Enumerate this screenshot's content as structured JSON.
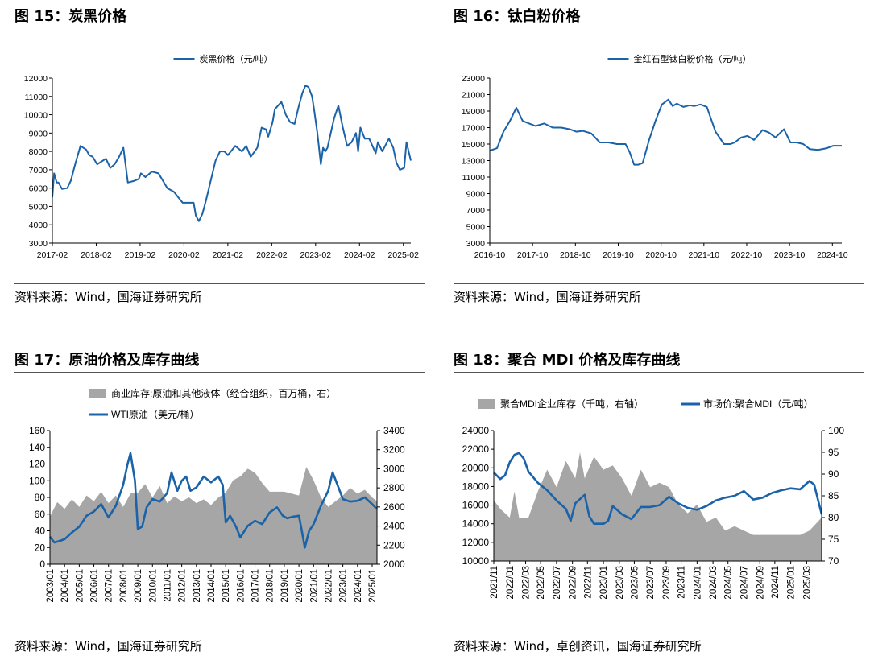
{
  "figures": {
    "fig15": {
      "title": "图 15：炭黑价格",
      "source": "资料来源：Wind，国海证券研究所"
    },
    "fig16": {
      "title": "图 16：钛白粉价格",
      "source": "资料来源：Wind，国海证券研究所"
    },
    "fig17": {
      "title": "图 17：原油价格及库存曲线",
      "source": "资料来源：Wind，国海证券研究所"
    },
    "fig18": {
      "title": "图 18：聚合 MDI 价格及库存曲线",
      "source": "资料来源：Wind，卓创资讯，国海证券研究所"
    }
  },
  "colors": {
    "line": "#1B63A8",
    "area": "#A6A6A6",
    "rule": "#555555"
  },
  "chart_data": [
    {
      "id": "fig15",
      "type": "line",
      "title": "",
      "xlabel": "",
      "ylabel": "",
      "legend_position": "top-center",
      "grid": false,
      "xlim": [
        2017.08,
        2025.25
      ],
      "ylim": [
        3000,
        12000
      ],
      "y_ticks": [
        3000,
        4000,
        5000,
        6000,
        7000,
        8000,
        9000,
        10000,
        11000,
        12000
      ],
      "x_ticks": [
        2017.08,
        2018.08,
        2019.08,
        2020.08,
        2021.08,
        2022.08,
        2023.08,
        2024.08,
        2025.08
      ],
      "x_tick_labels": [
        "2017-02",
        "2018-02",
        "2019-02",
        "2020-02",
        "2021-02",
        "2022-02",
        "2023-02",
        "2024-02",
        "2025-02"
      ],
      "series": [
        {
          "name": "炭黑价格（元/吨）",
          "x": [
            2017.08,
            2017.12,
            2017.18,
            2017.22,
            2017.3,
            2017.42,
            2017.5,
            2017.6,
            2017.72,
            2017.85,
            2017.92,
            2018.0,
            2018.1,
            2018.3,
            2018.4,
            2018.5,
            2018.6,
            2018.7,
            2018.8,
            2018.95,
            2019.05,
            2019.1,
            2019.2,
            2019.35,
            2019.5,
            2019.6,
            2019.7,
            2019.85,
            2019.95,
            2020.05,
            2020.2,
            2020.3,
            2020.35,
            2020.42,
            2020.5,
            2020.58,
            2020.65,
            2020.8,
            2020.9,
            2021.0,
            2021.08,
            2021.25,
            2021.4,
            2021.5,
            2021.6,
            2021.75,
            2021.85,
            2021.95,
            2022.0,
            2022.1,
            2022.15,
            2022.3,
            2022.4,
            2022.5,
            2022.6,
            2022.7,
            2022.78,
            2022.85,
            2022.92,
            2023.0,
            2023.05,
            2023.12,
            2023.2,
            2023.25,
            2023.3,
            2023.35,
            2023.5,
            2023.6,
            2023.7,
            2023.8,
            2023.9,
            2024.0,
            2024.05,
            2024.1,
            2024.2,
            2024.3,
            2024.45,
            2024.5,
            2024.6,
            2024.75,
            2024.85,
            2024.92,
            2025.0,
            2025.1,
            2025.15,
            2025.25
          ],
          "y": [
            5500,
            6800,
            6300,
            6300,
            5950,
            6000,
            6400,
            7300,
            8300,
            8100,
            7800,
            7700,
            7300,
            7600,
            7100,
            7300,
            7700,
            8200,
            6300,
            6400,
            6500,
            6800,
            6600,
            6900,
            6800,
            6400,
            6000,
            5800,
            5500,
            5200,
            5200,
            5200,
            4500,
            4200,
            4600,
            5300,
            6000,
            7500,
            8000,
            8000,
            7800,
            8300,
            8000,
            8300,
            7700,
            8200,
            9300,
            9200,
            8800,
            9600,
            10300,
            10700,
            10000,
            9600,
            9500,
            10500,
            11200,
            11600,
            11500,
            11000,
            10200,
            9000,
            7300,
            8200,
            8000,
            8200,
            9800,
            10500,
            9300,
            8300,
            8500,
            9000,
            8000,
            9300,
            8700,
            8700,
            7900,
            8500,
            8000,
            8700,
            8200,
            7400,
            7000,
            7100,
            8500,
            7500
          ]
        }
      ]
    },
    {
      "id": "fig16",
      "type": "line",
      "title": "",
      "xlabel": "",
      "ylabel": "",
      "legend_position": "top-center",
      "grid": false,
      "xlim": [
        2016.83,
        2025.05
      ],
      "ylim": [
        3000,
        23000
      ],
      "y_ticks": [
        3000,
        5000,
        7000,
        9000,
        11000,
        13000,
        15000,
        17000,
        19000,
        21000,
        23000
      ],
      "x_ticks": [
        2016.83,
        2017.83,
        2018.83,
        2019.83,
        2020.83,
        2021.83,
        2022.83,
        2023.83,
        2024.83
      ],
      "x_tick_labels": [
        "2016-10",
        "2017-10",
        "2018-10",
        "2019-10",
        "2020-10",
        "2021-10",
        "2022-10",
        "2023-10",
        "2024-10"
      ],
      "series": [
        {
          "name": "金红石型钛白粉价格（元/吨）",
          "x": [
            2016.83,
            2017.0,
            2017.15,
            2017.3,
            2017.45,
            2017.6,
            2017.75,
            2017.9,
            2018.1,
            2018.3,
            2018.5,
            2018.7,
            2018.85,
            2019.0,
            2019.2,
            2019.4,
            2019.6,
            2019.8,
            2020.0,
            2020.1,
            2020.2,
            2020.3,
            2020.4,
            2020.55,
            2020.7,
            2020.85,
            2021.0,
            2021.1,
            2021.2,
            2021.35,
            2021.5,
            2021.6,
            2021.75,
            2021.9,
            2022.1,
            2022.3,
            2022.45,
            2022.55,
            2022.7,
            2022.85,
            2023.0,
            2023.2,
            2023.35,
            2023.5,
            2023.7,
            2023.85,
            2024.0,
            2024.15,
            2024.3,
            2024.5,
            2024.7,
            2024.85,
            2025.05
          ],
          "y": [
            14200,
            14500,
            16500,
            17800,
            19400,
            17800,
            17500,
            17200,
            17500,
            17000,
            17000,
            16800,
            16500,
            16600,
            16300,
            15200,
            15200,
            15000,
            15000,
            14000,
            12500,
            12500,
            12700,
            15500,
            17800,
            19800,
            20400,
            19600,
            19900,
            19500,
            19700,
            19600,
            19800,
            19500,
            16500,
            15000,
            15000,
            15200,
            15800,
            16000,
            15500,
            16700,
            16400,
            15800,
            16800,
            15200,
            15200,
            15000,
            14400,
            14300,
            14500,
            14800,
            14800
          ]
        }
      ]
    },
    {
      "id": "fig17",
      "type": "line",
      "title": "",
      "xlabel": "",
      "ylabel": "",
      "legend_position": "top-center",
      "grid": false,
      "xlim": [
        2003.0,
        2025.33
      ],
      "ylim": [
        0,
        160
      ],
      "ylim_right": [
        2000,
        3400
      ],
      "y_ticks": [
        0,
        20,
        40,
        60,
        80,
        100,
        120,
        140,
        160
      ],
      "y_right_ticks": [
        2000,
        2200,
        2400,
        2600,
        2800,
        3000,
        3200,
        3400
      ],
      "x_ticks": [
        2003,
        2004,
        2005,
        2006,
        2007,
        2008,
        2009,
        2010,
        2011,
        2012,
        2013,
        2014,
        2015,
        2016,
        2017,
        2018,
        2019,
        2020,
        2021,
        2022,
        2023,
        2024,
        2025
      ],
      "x_tick_labels": [
        "2003/01",
        "2004/01",
        "2005/01",
        "2006/01",
        "2007/01",
        "2008/01",
        "2009/01",
        "2010/01",
        "2011/01",
        "2012/01",
        "2013/01",
        "2014/01",
        "2015/01",
        "2016/01",
        "2017/01",
        "2018/01",
        "2019/01",
        "2020/01",
        "2021/01",
        "2022/01",
        "2023/01",
        "2024/01",
        "2025/01"
      ],
      "series": [
        {
          "name": "商业库存:原油和其他液体（经合组织，百万桶，右）",
          "axis": "right",
          "type": "area",
          "x": [
            2003.0,
            2003.5,
            2004.0,
            2004.5,
            2005.0,
            2005.5,
            2006.0,
            2006.5,
            2007.0,
            2007.5,
            2008.0,
            2008.5,
            2009.0,
            2009.5,
            2010.0,
            2010.5,
            2011.0,
            2011.5,
            2012.0,
            2012.5,
            2013.0,
            2013.5,
            2014.0,
            2014.5,
            2015.0,
            2015.5,
            2016.0,
            2016.5,
            2017.0,
            2017.5,
            2018.0,
            2018.5,
            2019.0,
            2019.5,
            2020.0,
            2020.5,
            2021.0,
            2021.5,
            2022.0,
            2022.5,
            2023.0,
            2023.5,
            2024.0,
            2024.5,
            2025.0,
            2025.33
          ],
          "y": [
            2500,
            2650,
            2580,
            2680,
            2600,
            2720,
            2660,
            2760,
            2640,
            2720,
            2600,
            2740,
            2750,
            2840,
            2700,
            2820,
            2640,
            2710,
            2660,
            2700,
            2640,
            2680,
            2620,
            2700,
            2750,
            2880,
            2920,
            3000,
            2960,
            2850,
            2760,
            2760,
            2760,
            2740,
            2720,
            3020,
            2880,
            2700,
            2600,
            2660,
            2720,
            2800,
            2740,
            2780,
            2700,
            2660
          ]
        },
        {
          "name": "WTI原油（美元/桶）",
          "axis": "left",
          "type": "line",
          "x": [
            2003.0,
            2003.3,
            2003.7,
            2004.0,
            2004.5,
            2005.0,
            2005.5,
            2006.0,
            2006.5,
            2007.0,
            2007.5,
            2008.0,
            2008.3,
            2008.5,
            2008.8,
            2009.0,
            2009.3,
            2009.6,
            2010.0,
            2010.5,
            2011.0,
            2011.3,
            2011.7,
            2012.0,
            2012.3,
            2012.6,
            2013.0,
            2013.5,
            2014.0,
            2014.5,
            2014.8,
            2015.0,
            2015.3,
            2015.7,
            2016.0,
            2016.5,
            2017.0,
            2017.5,
            2018.0,
            2018.5,
            2018.9,
            2019.2,
            2019.6,
            2020.0,
            2020.2,
            2020.4,
            2020.7,
            2021.0,
            2021.5,
            2022.0,
            2022.3,
            2022.7,
            2023.0,
            2023.5,
            2024.0,
            2024.5,
            2025.0,
            2025.33
          ],
          "y": [
            33,
            26,
            28,
            30,
            38,
            45,
            58,
            63,
            72,
            56,
            70,
            95,
            120,
            133,
            100,
            42,
            45,
            68,
            78,
            75,
            85,
            110,
            88,
            100,
            105,
            88,
            92,
            105,
            98,
            105,
            95,
            50,
            58,
            45,
            32,
            46,
            52,
            48,
            62,
            68,
            58,
            55,
            57,
            58,
            40,
            20,
            40,
            48,
            70,
            88,
            110,
            92,
            78,
            75,
            76,
            80,
            72,
            66
          ]
        }
      ]
    },
    {
      "id": "fig18",
      "type": "line",
      "title": "",
      "xlabel": "",
      "ylabel": "",
      "legend_position": "top-center",
      "grid": false,
      "xlim": [
        2021.83,
        2025.33
      ],
      "ylim": [
        10000,
        24000
      ],
      "ylim_right": [
        70,
        100
      ],
      "y_ticks": [
        10000,
        12000,
        14000,
        16000,
        18000,
        20000,
        22000,
        24000
      ],
      "y_right_ticks": [
        70,
        75,
        80,
        85,
        90,
        95,
        100
      ],
      "x_ticks": [
        2021.83,
        2022.0,
        2022.17,
        2022.33,
        2022.5,
        2022.67,
        2022.83,
        2023.0,
        2023.17,
        2023.33,
        2023.5,
        2023.67,
        2023.83,
        2024.0,
        2024.17,
        2024.33,
        2024.5,
        2024.67,
        2024.83,
        2025.0,
        2025.17
      ],
      "x_tick_labels": [
        "2021/11",
        "2022/01",
        "2022/03",
        "2022/05",
        "2022/07",
        "2022/09",
        "2022/11",
        "2023/01",
        "2023/03",
        "2023/05",
        "2023/07",
        "2023/09",
        "2023/11",
        "2024/01",
        "2024/03",
        "2024/05",
        "2024/07",
        "2024/09",
        "2024/11",
        "2025/01",
        "2025/03"
      ],
      "series": [
        {
          "name": "聚合MDI企业库存（千吨，右轴）",
          "axis": "right",
          "type": "area",
          "x": [
            2021.83,
            2021.9,
            2022.0,
            2022.05,
            2022.1,
            2022.2,
            2022.3,
            2022.4,
            2022.5,
            2022.6,
            2022.7,
            2022.75,
            2022.8,
            2022.9,
            2023.0,
            2023.1,
            2023.2,
            2023.3,
            2023.4,
            2023.5,
            2023.6,
            2023.7,
            2023.8,
            2023.9,
            2024.0,
            2024.1,
            2024.2,
            2024.3,
            2024.4,
            2024.5,
            2024.6,
            2024.7,
            2024.8,
            2024.9,
            2025.0,
            2025.1,
            2025.2,
            2025.33
          ],
          "y": [
            84,
            82,
            80,
            86,
            80,
            80,
            86,
            91,
            87,
            93,
            89,
            95,
            89,
            94,
            91,
            92,
            89,
            85,
            91,
            87,
            88,
            87,
            83,
            81,
            83,
            79,
            80,
            77,
            78,
            77,
            76,
            76,
            76,
            76,
            76,
            76,
            77,
            80
          ]
        },
        {
          "name": "市场价:聚合MDI（元/吨）",
          "axis": "left",
          "type": "line",
          "x": [
            2021.83,
            2021.9,
            2021.95,
            2022.0,
            2022.05,
            2022.1,
            2022.15,
            2022.2,
            2022.3,
            2022.4,
            2022.5,
            2022.6,
            2022.65,
            2022.7,
            2022.8,
            2022.85,
            2022.9,
            2023.0,
            2023.05,
            2023.1,
            2023.2,
            2023.3,
            2023.4,
            2023.5,
            2023.6,
            2023.7,
            2023.8,
            2023.9,
            2024.0,
            2024.1,
            2024.2,
            2024.3,
            2024.4,
            2024.5,
            2024.6,
            2024.7,
            2024.8,
            2024.9,
            2025.0,
            2025.1,
            2025.2,
            2025.25,
            2025.33
          ],
          "y": [
            19500,
            18800,
            19200,
            20600,
            21400,
            21600,
            21000,
            19600,
            18400,
            17600,
            16500,
            15600,
            14300,
            16200,
            17100,
            14800,
            14000,
            14000,
            14300,
            15900,
            15000,
            14500,
            15800,
            15800,
            16000,
            16900,
            16200,
            15700,
            15500,
            15900,
            16500,
            16800,
            17000,
            17500,
            16600,
            16800,
            17300,
            17600,
            17800,
            17700,
            18600,
            18200,
            15000
          ]
        }
      ]
    }
  ]
}
